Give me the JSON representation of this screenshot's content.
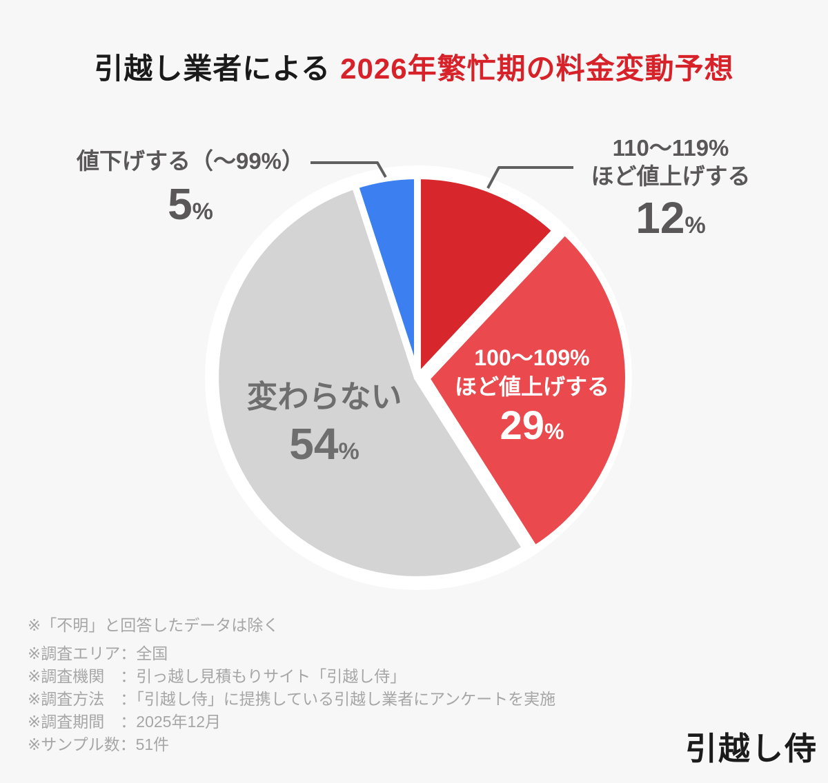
{
  "title": {
    "black": "引越し業者による",
    "red": "2026年繁忙期の料金変動予想"
  },
  "percent_sign": "%",
  "chart_data": {
    "type": "pie",
    "title": "引越し業者による2026年繁忙期の料金変動予想",
    "start_angle_deg": 0,
    "direction": "clockwise",
    "unit": "%",
    "segments": [
      {
        "id": "up-110-119",
        "label": "110〜119%ほど値上げする",
        "label_lines": [
          "110〜119%",
          "ほど値上げする"
        ],
        "value": 12,
        "color": "#d7272c",
        "label_position": "outside-right",
        "exploded": false
      },
      {
        "id": "up-100-109",
        "label": "100〜109%ほど値上げする",
        "label_lines": [
          "100〜109%",
          "ほど値上げする"
        ],
        "value": 29,
        "color": "#ea494e",
        "label_position": "inside",
        "exploded": true
      },
      {
        "id": "no-change",
        "label": "変わらない",
        "label_lines": [
          "変わらない"
        ],
        "value": 54,
        "color": "#d4d4d4",
        "label_position": "inside",
        "exploded": false
      },
      {
        "id": "down",
        "label": "値下げする（〜99%）",
        "label_lines": [
          "値下げする（〜99%）"
        ],
        "value": 5,
        "color": "#3c7ff1",
        "label_position": "outside-left",
        "exploded": false
      }
    ]
  },
  "notes": [
    "※「不明」と回答したデータは除く",
    "※調査エリア：全国",
    "※調査機関　：引っ越し見積もりサイト「引越し侍」",
    "※調査方法　：「引越し侍」に提携している引越し業者にアンケートを実施",
    "※調査期間　：2025年12月",
    "※サンプル数：51件"
  ],
  "logo": "引越し侍"
}
